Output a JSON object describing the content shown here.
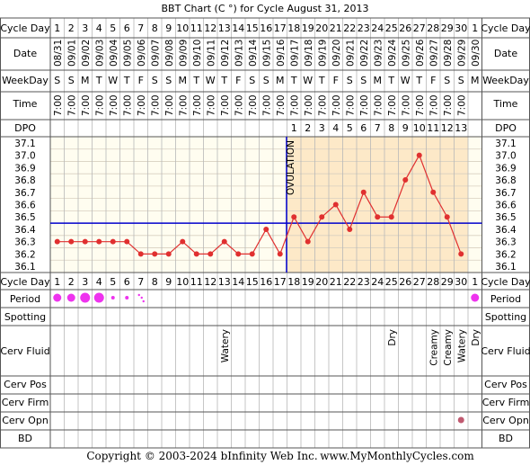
{
  "title": "BBT Chart (C °) for Cycle August 31, 2013",
  "row_labels": {
    "cycle_day": "Cycle Day",
    "date": "Date",
    "weekday": "WeekDay",
    "time": "Time",
    "dpo": "DPO",
    "period": "Period",
    "spotting": "Spotting",
    "cerv_fluid": "Cerv Fluid",
    "cerv_pos": "Cerv Pos",
    "cerv_firm": "Cerv Firm",
    "cerv_opn": "Cerv Opn",
    "bd": "BD"
  },
  "days": [
    "1",
    "2",
    "3",
    "4",
    "5",
    "6",
    "7",
    "8",
    "9",
    "10",
    "11",
    "12",
    "13",
    "14",
    "15",
    "16",
    "17",
    "18",
    "19",
    "20",
    "21",
    "22",
    "23",
    "24",
    "25",
    "26",
    "27",
    "28",
    "29",
    "30",
    "1"
  ],
  "dates": [
    "08/31",
    "09/01",
    "09/02",
    "09/03",
    "09/04",
    "09/05",
    "09/06",
    "09/07",
    "09/08",
    "09/09",
    "09/10",
    "09/11",
    "09/12",
    "09/13",
    "09/14",
    "09/15",
    "09/16",
    "09/17",
    "09/18",
    "09/19",
    "09/20",
    "09/21",
    "09/22",
    "09/23",
    "09/24",
    "09/25",
    "09/26",
    "09/27",
    "09/28",
    "09/29",
    "09/30"
  ],
  "weekdays": [
    "S",
    "S",
    "M",
    "T",
    "W",
    "T",
    "F",
    "S",
    "S",
    "M",
    "T",
    "W",
    "T",
    "F",
    "S",
    "S",
    "M",
    "T",
    "W",
    "T",
    "F",
    "S",
    "S",
    "M",
    "T",
    "W",
    "T",
    "F",
    "S",
    "S",
    "M"
  ],
  "times": [
    "7:00",
    "7:00",
    "7:00",
    "7:00",
    "7:00",
    "7:00",
    "7:00",
    "7:00",
    "7:00",
    "7:00",
    "7:00",
    "7:00",
    "7:00",
    "7:00",
    "7:00",
    "7:00",
    "7:00",
    "7:00",
    "7:00",
    "7:00",
    "7:00",
    "7:00",
    "7:00",
    "7:00",
    "7:00",
    "7:00",
    "7:00",
    "7:00",
    "7:00",
    "7:00",
    ""
  ],
  "dpo": [
    "",
    "",
    "",
    "",
    "",
    "",
    "",
    "",
    "",
    "",
    "",
    "",
    "",
    "",
    "",
    "",
    "",
    "1",
    "2",
    "3",
    "4",
    "5",
    "6",
    "7",
    "8",
    "9",
    "10",
    "11",
    "12",
    "13",
    ""
  ],
  "ovulation_label": "OVULATION",
  "period_sizes": [
    3,
    3,
    4,
    4,
    2,
    2,
    1,
    0,
    0,
    0,
    0,
    0,
    0,
    0,
    0,
    0,
    0,
    0,
    0,
    0,
    0,
    0,
    0,
    0,
    0,
    0,
    0,
    0,
    0,
    0,
    3
  ],
  "cerv_fluid": [
    "",
    "",
    "",
    "",
    "",
    "",
    "",
    "",
    "",
    "",
    "",
    "",
    "Watery",
    "",
    "",
    "",
    "",
    "",
    "",
    "",
    "",
    "",
    "",
    "",
    "Dry",
    "",
    "",
    "Creamy",
    "Creamy",
    "Watery",
    "Dry"
  ],
  "cerv_opn_marks": [
    0,
    0,
    0,
    0,
    0,
    0,
    0,
    0,
    0,
    0,
    0,
    0,
    0,
    0,
    0,
    0,
    0,
    0,
    0,
    0,
    0,
    0,
    0,
    0,
    0,
    0,
    0,
    0,
    0,
    1,
    0
  ],
  "copyright": "Copyright © 2003-2024 bInfinity Web Inc.",
  "website": "www.MyMonthlyCycles.com",
  "colors": {
    "line": "#e03030",
    "coverline": "#0000cc",
    "luteal_bg": "#fde9c8",
    "grid_bg": "#fffdf0",
    "period": "#ee33ee",
    "cerv_opn_dot": "#c05a70"
  },
  "chart_data": {
    "type": "line",
    "title": "BBT Chart (C °) for Cycle August 31, 2013",
    "x": [
      1,
      2,
      3,
      4,
      5,
      6,
      7,
      8,
      9,
      10,
      11,
      12,
      13,
      14,
      15,
      16,
      17,
      18,
      19,
      20,
      21,
      22,
      23,
      24,
      25,
      26,
      27,
      28,
      29,
      30
    ],
    "y_ticks": [
      37.1,
      37.0,
      36.9,
      36.8,
      36.7,
      36.6,
      36.5,
      36.4,
      36.3,
      36.2,
      36.1
    ],
    "ylim": [
      36.1,
      37.1
    ],
    "series": [
      {
        "values": [
          36.3,
          36.3,
          36.3,
          36.3,
          36.3,
          36.3,
          36.2,
          36.2,
          36.2,
          36.3,
          36.2,
          36.2,
          36.3,
          36.2,
          36.2,
          36.4,
          36.2,
          36.5,
          36.3,
          36.5,
          36.6,
          36.4,
          36.7,
          36.5,
          36.5,
          36.8,
          37.0,
          36.7,
          36.5,
          36.2
        ]
      }
    ],
    "coverline": 36.45,
    "ovulation_day": 17,
    "grid": true
  }
}
